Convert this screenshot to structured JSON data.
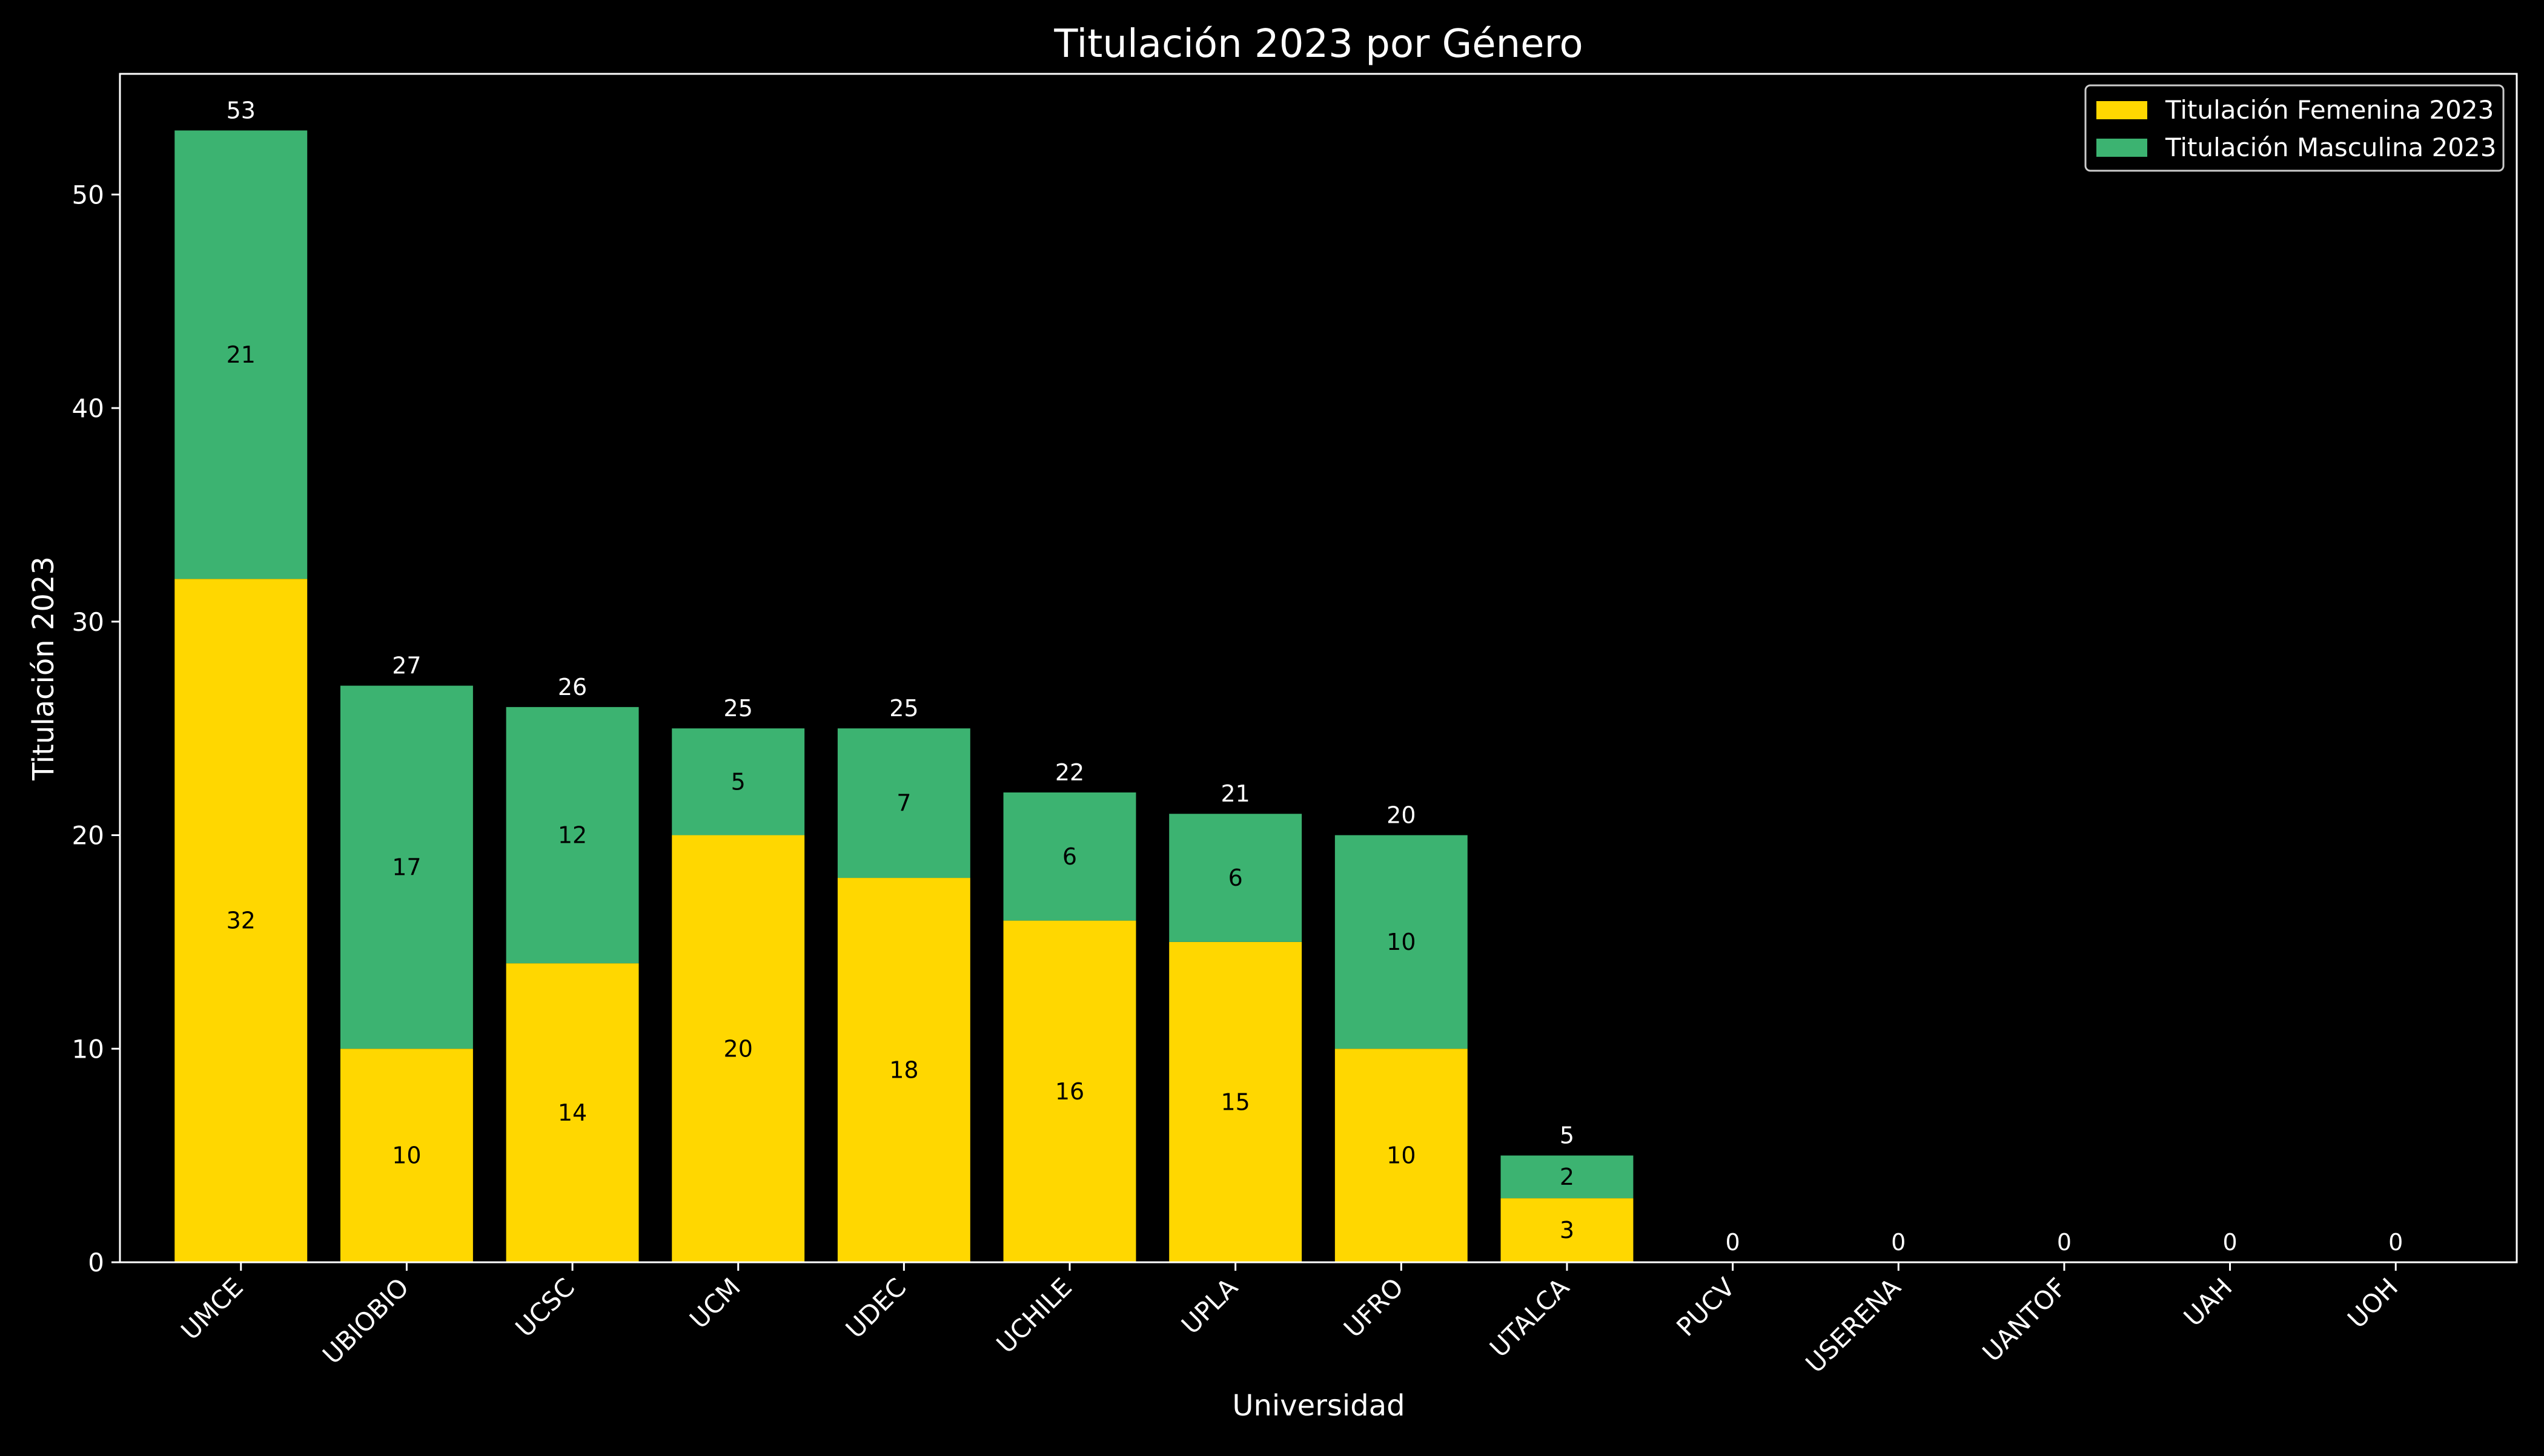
{
  "chart_data": {
    "type": "bar",
    "stacked": true,
    "title": "Titulación 2023 por Género",
    "xlabel": "Universidad",
    "ylabel": "Titulación 2023",
    "ylim": [
      0,
      55.65
    ],
    "yticks": [
      0,
      10,
      20,
      30,
      40,
      50
    ],
    "grid": false,
    "legend_position": "top-right",
    "categories": [
      "UMCE",
      "UBIOBIO",
      "UCSC",
      "UCM",
      "UDEC",
      "UCHILE",
      "UPLA",
      "UFRO",
      "UTALCA",
      "PUCV",
      "USERENA",
      "UANTOF",
      "UAH",
      "UOH"
    ],
    "series": [
      {
        "name": "Titulación Femenina 2023",
        "color": "#FFD700",
        "values": [
          32,
          10,
          14,
          20,
          18,
          16,
          15,
          10,
          3,
          0,
          0,
          0,
          0,
          0
        ]
      },
      {
        "name": "Titulación Masculina 2023",
        "color": "#3CB371",
        "values": [
          21,
          17,
          12,
          5,
          7,
          6,
          6,
          10,
          2,
          0,
          0,
          0,
          0,
          0
        ]
      }
    ],
    "totals": [
      53,
      27,
      26,
      25,
      25,
      22,
      21,
      20,
      5,
      0,
      0,
      0,
      0,
      0
    ],
    "colors": {
      "background": "#000000",
      "foreground": "#FFFFFF",
      "segment_label": "#000000"
    }
  }
}
